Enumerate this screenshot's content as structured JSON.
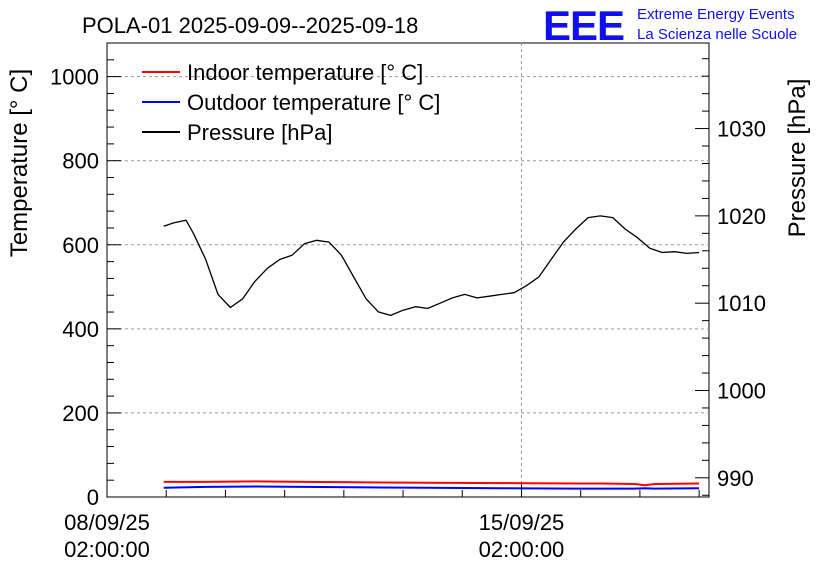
{
  "chart_data": {
    "type": "line",
    "title": "POLA-01 2025-09-09--2025-09-18",
    "ylabel_left": "Temperature [° C]",
    "ylabel_right": "Pressure [hPa]",
    "xlabel": "",
    "ylim_left": [
      0,
      1080
    ],
    "ylim_right": [
      987.8,
      1039.8
    ],
    "x_range_hours": [
      0,
      244
    ],
    "x_ticks": [
      {
        "hour": 0,
        "line1": "08/09/25",
        "line2": "02:00:00"
      },
      {
        "hour": 168,
        "line1": "15/09/25",
        "line2": "02:00:00"
      }
    ],
    "y_ticks_left": [
      0,
      200,
      400,
      600,
      800,
      1000
    ],
    "y_ticks_right": [
      990,
      1000,
      1010,
      1020,
      1030
    ],
    "grid": true,
    "legend_position": "top-left",
    "series": [
      {
        "name": "Indoor temperature [° C]",
        "axis": "left",
        "color": "#ff0000",
        "x": [
          23,
          40,
          60,
          80,
          100,
          130,
          160,
          190,
          200,
          214,
          218,
          222,
          240
        ],
        "y": [
          36,
          36,
          37,
          36,
          35,
          34,
          33,
          32,
          32,
          31,
          28,
          31,
          32
        ]
      },
      {
        "name": "Outdoor temperature [° C]",
        "axis": "left",
        "color": "#0000ff",
        "x": [
          23,
          40,
          60,
          80,
          100,
          130,
          160,
          190,
          200,
          214,
          218,
          222,
          240
        ],
        "y": [
          22,
          24,
          25,
          24,
          23,
          22,
          21,
          20,
          20,
          20,
          21,
          20,
          21
        ]
      },
      {
        "name": "Pressure [hPa]",
        "axis": "right",
        "color": "#000000",
        "x": [
          23,
          27,
          32,
          35,
          40,
          45,
          50,
          55,
          60,
          65,
          70,
          75,
          80,
          85,
          90,
          95,
          100,
          105,
          110,
          115,
          120,
          125,
          130,
          135,
          140,
          145,
          150,
          155,
          160,
          165,
          170,
          175,
          180,
          185,
          190,
          195,
          200,
          205,
          210,
          215,
          220,
          225,
          230,
          235,
          240
        ],
        "y": [
          1018.8,
          1019.2,
          1019.5,
          1018.0,
          1015.0,
          1011.0,
          1009.5,
          1010.5,
          1012.5,
          1014.0,
          1015.0,
          1015.5,
          1016.8,
          1017.2,
          1017.0,
          1015.5,
          1013.0,
          1010.5,
          1009.0,
          1008.6,
          1009.2,
          1009.6,
          1009.4,
          1010.0,
          1010.6,
          1011.0,
          1010.6,
          1010.8,
          1011.0,
          1011.2,
          1012.0,
          1013.0,
          1015.0,
          1017.0,
          1018.5,
          1019.8,
          1020.0,
          1019.8,
          1018.5,
          1017.5,
          1016.3,
          1015.8,
          1015.9,
          1015.7,
          1015.8
        ]
      }
    ]
  },
  "logo": {
    "mark": "EEE",
    "line1": "Extreme Energy Events",
    "line2": "La Scienza nelle Scuole",
    "color": "#1010ee"
  }
}
